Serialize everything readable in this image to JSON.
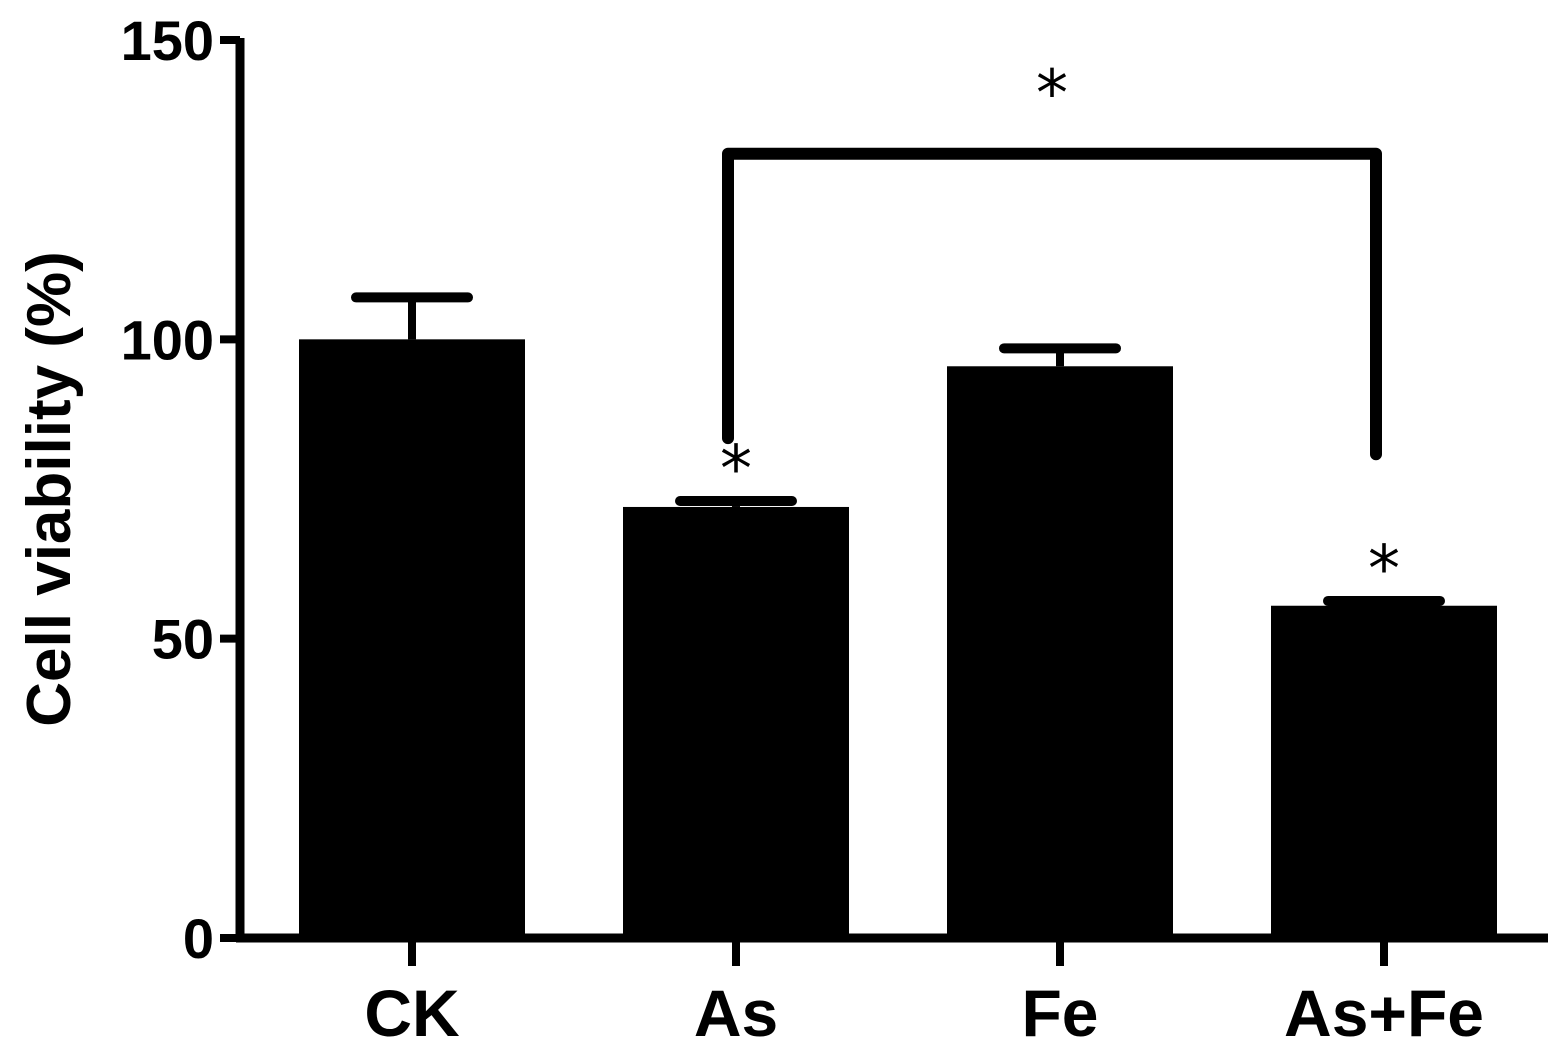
{
  "chart_data": {
    "type": "bar",
    "title": "",
    "xlabel": "",
    "ylabel": "Cell viability (%)",
    "ylim": [
      0,
      150
    ],
    "yticks": [
      0,
      50,
      100,
      150
    ],
    "grid": false,
    "categories": [
      "CK",
      "As",
      "Fe",
      "As+Fe"
    ],
    "values": [
      100,
      72,
      95.5,
      55.5
    ],
    "errors": [
      7,
      1,
      3,
      0.8
    ],
    "bar_color": "#000000",
    "significance": [
      {
        "category": "As",
        "label": "*"
      },
      {
        "category": "As+Fe",
        "label": "*"
      }
    ],
    "comparisons": [
      {
        "from": "As",
        "to": "As+Fe",
        "bracket_y": 131,
        "label": "*"
      }
    ]
  }
}
